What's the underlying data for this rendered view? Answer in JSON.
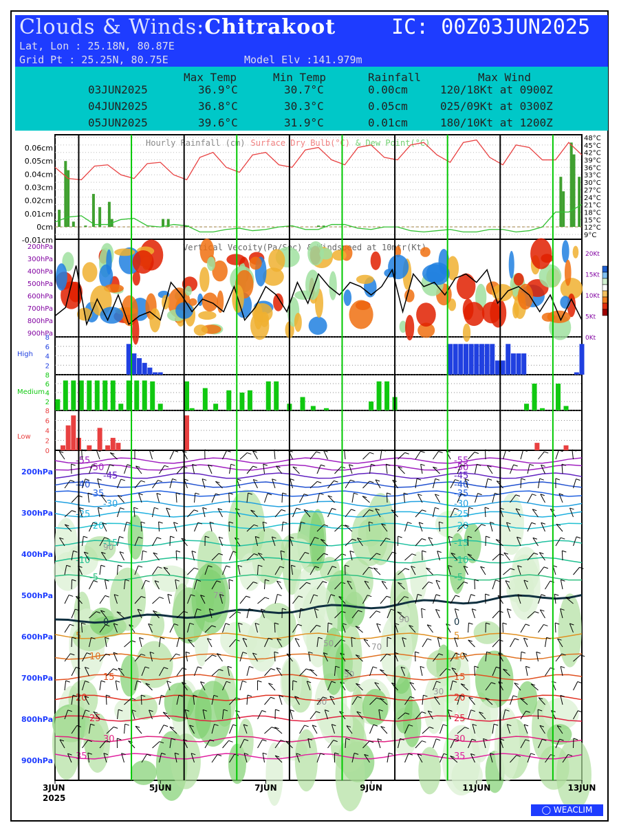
{
  "header": {
    "title_prefix": "Clouds & Winds:",
    "location": "Chitrakoot",
    "ic": "IC: 00Z03JUN2025",
    "latlon": "Lat, Lon : 25.18N, 80.87E",
    "gridpt": "Grid Pt  : 25.25N, 80.75E",
    "model_elv": "Model Elv :141.979m"
  },
  "stats": {
    "headers": [
      "Max Temp",
      "Min Temp",
      "Rainfall",
      "Max Wind"
    ],
    "rows": [
      {
        "date": "03JUN2025",
        "max": "36.9°C",
        "min": "30.7°C",
        "rain": "0.00cm",
        "wind": "120/18Kt at 0900Z"
      },
      {
        "date": "04JUN2025",
        "max": "36.8°C",
        "min": "30.3°C",
        "rain": "0.05cm",
        "wind": "025/09Kt at 0300Z"
      },
      {
        "date": "05JUN2025",
        "max": "39.6°C",
        "min": "31.9°C",
        "rain": "0.01cm",
        "wind": "180/10Kt at 1200Z"
      }
    ]
  },
  "colors": {
    "header_bg": "#1e3cff",
    "stats_bg": "#00c8c8",
    "temp": "#e84040",
    "dew": "#30c030",
    "rain": "#40a030",
    "high": "#2040e0",
    "medium": "#10c810",
    "low": "#e84040",
    "day_line": "#00c800"
  },
  "chart_data": [
    {
      "type": "bar",
      "title_parts": [
        "Hourly Rainfall (cm)",
        "Surface Dry Bulb(°C)",
        "& Dew Point(°C)"
      ],
      "y_ticks": [
        "0.06cm",
        "0.05cm",
        "0.04cm",
        "0.03cm",
        "0.02cm",
        "0.01cm",
        "0cm",
        "-0.01cm"
      ],
      "ylim": [
        -0.01,
        0.065
      ],
      "right_ticks": [
        "48°C",
        "45°C",
        "42°C",
        "39°C",
        "36°C",
        "33°C",
        "30°C",
        "27°C",
        "24°C",
        "21°C",
        "18°C",
        "15°C",
        "12°C",
        "9°C"
      ],
      "xlim_days": [
        0,
        10
      ],
      "rain": {
        "x": [
          0.08,
          0.2,
          0.25,
          0.35,
          0.58,
          0.73,
          0.85,
          1.03,
          1.08,
          2.05,
          2.15,
          2.48,
          2.52,
          5.0,
          5.1,
          9.6,
          9.65,
          9.8,
          9.85,
          9.95
        ],
        "values": [
          0.013,
          0.05,
          0.043,
          0.004,
          0.001,
          0.025,
          0.015,
          0.019,
          0.006,
          0.006,
          0.006,
          0.001,
          0.001,
          0.001,
          0.001,
          0.038,
          0.027,
          0.064,
          0.055,
          0.038
        ]
      },
      "drybulb": {
        "x": [
          0,
          0.25,
          0.5,
          0.75,
          1.0,
          1.25,
          1.5,
          1.75,
          2.0,
          2.25,
          2.5,
          2.75,
          3.0,
          3.25,
          3.5,
          3.75,
          4.0,
          4.25,
          4.5,
          4.75,
          5.0,
          5.25,
          5.5,
          5.75,
          6.0,
          6.25,
          6.5,
          6.75,
          7.0,
          7.25,
          7.5,
          7.75,
          8.0,
          8.25,
          8.5,
          8.75,
          9.0,
          9.25,
          9.5,
          9.75,
          10.0
        ],
        "values": [
          36,
          31.5,
          31,
          36.5,
          37,
          33,
          31.5,
          37.5,
          38,
          33,
          31,
          40,
          42,
          36,
          34,
          41,
          42,
          37,
          36,
          43,
          44,
          39,
          37,
          44,
          45,
          40,
          39,
          45,
          46,
          41,
          38,
          46,
          47,
          40,
          37,
          45,
          44,
          39,
          39,
          46,
          41
        ]
      },
      "dewpoint": {
        "x": [
          0,
          0.25,
          0.5,
          0.75,
          1.0,
          1.25,
          1.5,
          1.75,
          2.0,
          2.25,
          2.5,
          2.75,
          3.0,
          3.25,
          3.5,
          3.75,
          4.0,
          4.25,
          4.5,
          4.75,
          5.0,
          5.25,
          5.5,
          5.75,
          6.0,
          6.25,
          6.5,
          6.75,
          7.0,
          7.25,
          7.5,
          7.75,
          8.0,
          8.25,
          8.5,
          8.75,
          9.0,
          9.25,
          9.5,
          9.75,
          10.0
        ],
        "values": [
          14,
          16,
          16.5,
          13,
          13,
          15,
          15.5,
          12.5,
          12,
          13,
          12.5,
          10,
          10,
          11,
          11.5,
          10.5,
          11,
          12,
          12.5,
          11,
          11,
          13,
          13,
          11.5,
          11,
          12,
          12,
          10.5,
          10,
          10.5,
          11,
          10,
          10,
          11,
          11,
          10,
          10.5,
          12,
          18,
          18,
          21
        ]
      }
    },
    {
      "type": "heatmap",
      "title": "Vertical Vecoity(Pa/Sec) & Windspeed at 10mtr(Kt)",
      "y_ticks": [
        "200hPa",
        "300hPa",
        "400hPa",
        "500hPa",
        "600hPa",
        "700hPa",
        "800hPa",
        "900hPa"
      ],
      "right_ticks": [
        "20Kt",
        "15Kt",
        "10Kt",
        "5Kt",
        "0Kt"
      ],
      "wind10m": {
        "x": [
          0,
          0.2,
          0.4,
          0.6,
          0.8,
          1.0,
          1.2,
          1.4,
          1.6,
          1.8,
          2.0,
          2.2,
          2.4,
          2.6,
          2.8,
          3.0,
          3.2,
          3.4,
          3.6,
          3.8,
          4.0,
          4.2,
          4.4,
          4.6,
          4.8,
          5.0,
          5.2,
          5.4,
          5.6,
          5.8,
          6.0,
          6.2,
          6.4,
          6.6,
          6.8,
          7.0,
          7.2,
          7.4,
          7.6,
          7.8,
          8.0,
          8.2,
          8.4,
          8.6,
          8.8,
          9.0,
          9.2,
          9.4,
          9.6,
          9.8,
          10.0
        ],
        "values": [
          5,
          7,
          17,
          3,
          9,
          4,
          10,
          3,
          5,
          6,
          4,
          13,
          10,
          6,
          9,
          8,
          6,
          12,
          4,
          7,
          12,
          10,
          6,
          13,
          8,
          15,
          12,
          10,
          13,
          12,
          10,
          12,
          16,
          6,
          15,
          12,
          13,
          10,
          14,
          15,
          13,
          16,
          8,
          11,
          12,
          10,
          6,
          10,
          4,
          9,
          4
        ]
      }
    },
    {
      "type": "bar",
      "title": "High",
      "y_ticks": [
        "2",
        "4",
        "6",
        "8"
      ],
      "ylim": [
        0,
        8
      ],
      "x": [
        1.4,
        1.5,
        1.6,
        1.7,
        1.8,
        1.9,
        2.0,
        7.5,
        7.6,
        7.7,
        7.8,
        7.9,
        8.0,
        8.1,
        8.2,
        8.3,
        8.4,
        8.5,
        8.6,
        8.7,
        8.8,
        8.9,
        9.9,
        10.0
      ],
      "values": [
        6.5,
        4.5,
        3.5,
        2.5,
        1.5,
        0.5,
        0.5,
        6.5,
        6.5,
        6.5,
        6.5,
        6.5,
        6.5,
        6.5,
        6.5,
        6.5,
        3,
        3,
        6.5,
        4.5,
        4.5,
        4.5,
        0.5,
        6.5
      ]
    },
    {
      "type": "bar",
      "title": "Medium",
      "y_ticks": [
        "2",
        "4",
        "6",
        "8"
      ],
      "ylim": [
        0,
        8
      ],
      "x": [
        0.05,
        0.2,
        0.35,
        0.5,
        0.65,
        0.8,
        0.95,
        1.1,
        1.25,
        1.4,
        1.55,
        1.7,
        1.85,
        2.0,
        2.5,
        2.6,
        2.85,
        3.05,
        3.3,
        3.55,
        3.7,
        4.05,
        4.2,
        4.45,
        4.7,
        4.9,
        5.15,
        6.0,
        6.15,
        6.3,
        6.45,
        8.95,
        9.1,
        9.25,
        9.55,
        9.7
      ],
      "values": [
        2.5,
        6.7,
        6.7,
        6.7,
        6.7,
        6.7,
        6.7,
        6.7,
        1.5,
        6.7,
        6.7,
        6.7,
        6.5,
        1.5,
        6.5,
        0.5,
        5.0,
        1.5,
        4.5,
        4.0,
        4.5,
        6.5,
        6.5,
        1.5,
        3.0,
        1.0,
        0.5,
        2.0,
        6.5,
        6.5,
        3.0,
        1.5,
        6.0,
        0.5,
        6.0,
        1.0
      ]
    },
    {
      "type": "bar",
      "title": "Low",
      "y_ticks": [
        "0",
        "2",
        "4",
        "6",
        "8"
      ],
      "ylim": [
        0,
        8
      ],
      "x": [
        0.15,
        0.25,
        0.35,
        0.45,
        0.65,
        0.85,
        1.0,
        1.1,
        1.2,
        2.5,
        9.15,
        9.7
      ],
      "values": [
        1.0,
        5.0,
        7.0,
        2.5,
        1.0,
        4.5,
        1.0,
        2.5,
        1.5,
        7.0,
        1.5,
        1.0
      ]
    },
    {
      "type": "heatmap",
      "y_ticks": [
        "200hPa",
        "300hPa",
        "400hPa",
        "500hPa",
        "600hPa",
        "700hPa",
        "800hPa",
        "900hPa"
      ],
      "x_ticks": [
        "3JUN",
        "5JUN",
        "7JUN",
        "9JUN",
        "11JUN",
        "13JUN"
      ],
      "x_year": "2025",
      "isotherms": [
        {
          "label": "-55",
          "color": "#a020c0"
        },
        {
          "label": "-50",
          "color": "#a020c0"
        },
        {
          "label": "-45",
          "color": "#6020c0"
        },
        {
          "label": "-40",
          "color": "#2050d0"
        },
        {
          "label": "-35",
          "color": "#2060e0"
        },
        {
          "label": "-30",
          "color": "#20a0e0"
        },
        {
          "label": "-25",
          "color": "#20b0e0"
        },
        {
          "label": "-20",
          "color": "#20c0d0"
        },
        {
          "label": "-15",
          "color": "#20c0a0"
        },
        {
          "label": "-10",
          "color": "#20c090"
        },
        {
          "label": "-5",
          "color": "#30c080"
        },
        {
          "label": "0",
          "color": "#103040"
        },
        {
          "label": "5",
          "color": "#e09020"
        },
        {
          "label": "10",
          "color": "#e07020"
        },
        {
          "label": "15",
          "color": "#e05020"
        },
        {
          "label": "20",
          "color": "#e03020"
        },
        {
          "label": "25",
          "color": "#e02040"
        },
        {
          "label": "30",
          "color": "#e02080"
        },
        {
          "label": "35",
          "color": "#e020a0"
        }
      ],
      "rh_labels": [
        "90",
        "70",
        "50",
        "30"
      ]
    }
  ],
  "brand": "WEACLIM"
}
